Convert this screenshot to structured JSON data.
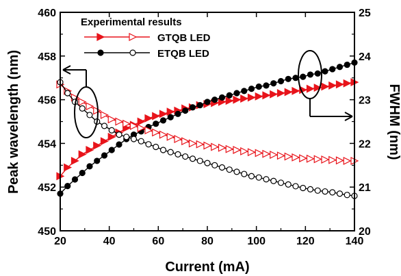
{
  "chart_data": {
    "type": "line",
    "xlabel": "Current  (mA)",
    "ylabel_left": "Peak wavelength (nm)",
    "ylabel_right": "FWHM (nm)",
    "xlim": [
      20,
      140
    ],
    "ylim_left": [
      450,
      460
    ],
    "ylim_right": [
      20,
      25
    ],
    "x_ticks": [
      "20",
      "40",
      "60",
      "80",
      "100",
      "120",
      "140"
    ],
    "y_left_ticks": [
      "450",
      "452",
      "454",
      "456",
      "458",
      "460"
    ],
    "y_right_ticks": [
      "20",
      "21",
      "22",
      "23",
      "24",
      "25"
    ],
    "legend": {
      "title": "Experimental results",
      "position": "top-left",
      "entries": [
        "GTQB LED",
        "ETQB LED"
      ]
    },
    "x": [
      20,
      23,
      26,
      29,
      32,
      35,
      38,
      41,
      44,
      47,
      50,
      53,
      56,
      59,
      62,
      65,
      68,
      71,
      74,
      77,
      80,
      83,
      86,
      89,
      92,
      95,
      98,
      101,
      104,
      107,
      110,
      113,
      116,
      119,
      122,
      125,
      128,
      131,
      134,
      137,
      140
    ],
    "series": [
      {
        "name": "GTQB LED",
        "axis": "left",
        "quantity": "Peak wavelength",
        "marker": "filled-triangle",
        "color": "#e8141b",
        "values": [
          452.5,
          452.9,
          453.2,
          453.5,
          453.7,
          453.9,
          454.1,
          454.3,
          454.5,
          454.7,
          454.85,
          455.0,
          455.15,
          455.25,
          455.35,
          455.45,
          455.5,
          455.6,
          455.65,
          455.75,
          455.8,
          455.85,
          455.9,
          455.95,
          456.0,
          456.05,
          456.1,
          456.15,
          456.2,
          456.25,
          456.3,
          456.35,
          456.4,
          456.45,
          456.5,
          456.55,
          456.6,
          456.65,
          456.7,
          456.75,
          456.8
        ]
      },
      {
        "name": "ETQB LED",
        "axis": "left",
        "quantity": "Peak wavelength",
        "marker": "filled-circle",
        "color": "#000000",
        "values": [
          451.7,
          452.05,
          452.35,
          452.65,
          452.95,
          453.2,
          453.45,
          453.7,
          453.95,
          454.2,
          454.4,
          454.55,
          454.75,
          454.9,
          455.05,
          455.2,
          455.35,
          455.5,
          455.65,
          455.75,
          455.9,
          456.0,
          456.1,
          456.2,
          456.3,
          456.4,
          456.5,
          456.6,
          456.65,
          456.75,
          456.85,
          456.95,
          457.0,
          457.05,
          457.15,
          457.2,
          457.3,
          457.4,
          457.5,
          457.6,
          457.7
        ]
      },
      {
        "name": "GTQB LED",
        "axis": "right",
        "quantity": "FWHM",
        "marker": "open-triangle",
        "color": "#e8141b",
        "values": [
          23.35,
          23.2,
          23.05,
          22.95,
          22.85,
          22.75,
          22.65,
          22.55,
          22.5,
          22.45,
          22.4,
          22.35,
          22.3,
          22.25,
          22.2,
          22.15,
          22.1,
          22.05,
          22.0,
          21.98,
          21.95,
          21.92,
          21.9,
          21.87,
          21.85,
          21.82,
          21.8,
          21.78,
          21.76,
          21.74,
          21.72,
          21.7,
          21.68,
          21.66,
          21.65,
          21.64,
          21.63,
          21.62,
          21.61,
          21.6,
          21.6
        ]
      },
      {
        "name": "ETQB LED",
        "axis": "right",
        "quantity": "FWHM",
        "marker": "open-circle",
        "color": "#000000",
        "values": [
          23.4,
          23.15,
          22.95,
          22.8,
          22.65,
          22.5,
          22.4,
          22.3,
          22.2,
          22.15,
          22.1,
          22.05,
          21.98,
          21.92,
          21.85,
          21.8,
          21.75,
          21.7,
          21.65,
          21.6,
          21.55,
          21.5,
          21.45,
          21.4,
          21.35,
          21.3,
          21.25,
          21.22,
          21.18,
          21.14,
          21.1,
          21.06,
          21.02,
          20.98,
          20.95,
          20.92,
          20.9,
          20.88,
          20.85,
          20.82,
          20.8
        ]
      }
    ]
  }
}
